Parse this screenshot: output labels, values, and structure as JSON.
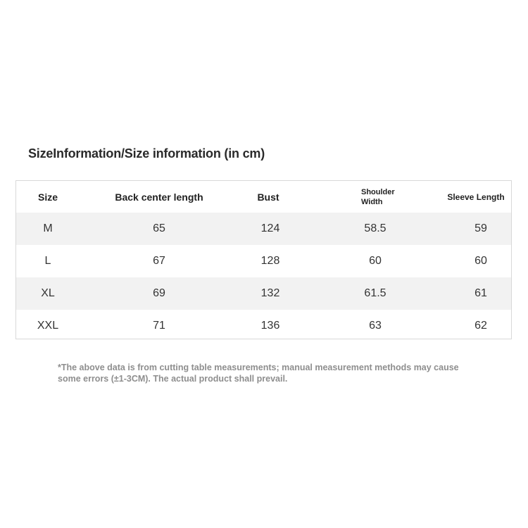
{
  "title": "SizeInformation/Size information (in cm)",
  "table": {
    "headers": [
      "Size",
      "Back center length",
      "Bust",
      "Shoulder Width",
      "Sleeve Length"
    ],
    "rows": [
      [
        "M",
        "65",
        "124",
        "58.5",
        "59"
      ],
      [
        "L",
        "67",
        "128",
        "60",
        "60"
      ],
      [
        "XL",
        "69",
        "132",
        "61.5",
        "61"
      ],
      [
        "XXL",
        "71",
        "136",
        "63",
        "62"
      ]
    ]
  },
  "note": "*The above data is from cutting table measurements; manual measurement methods may cause some errors (±1-3CM). The actual product shall prevail.",
  "colors": {
    "row_stripe": "#f2f2f2",
    "border": "#d8d8d8",
    "note_text": "#8e8e8e"
  }
}
